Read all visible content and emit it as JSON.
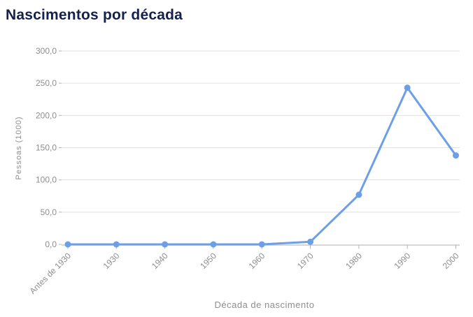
{
  "page": {
    "background": "#ffffff"
  },
  "chart_data": {
    "type": "line",
    "title": "Nascimentos por década",
    "xlabel": "Década de nascimento",
    "ylabel": "Pessoas (1000)",
    "categories": [
      "Antes de 1930",
      "1930",
      "1940",
      "1950",
      "1960",
      "1970",
      "1980",
      "1990",
      "2000"
    ],
    "values": [
      0,
      0,
      0,
      0,
      0,
      4,
      77,
      243,
      138
    ],
    "ylim": [
      0,
      300
    ],
    "ytick_values": [
      0,
      50,
      100,
      150,
      200,
      250,
      300
    ],
    "ytick_labels": [
      "0,0",
      "50,0",
      "100,0",
      "150,0",
      "200,0",
      "250,0",
      "300,0"
    ],
    "grid": true,
    "legend": "none",
    "marker": "circle",
    "colors": {
      "series": "#6d9fe8",
      "title": "#14204e",
      "axis_labels": "#8e8e8e",
      "axis_titles": "#8e8e8e",
      "gridline": "#e1e1e1",
      "axis_line": "#c9c9c9",
      "tick": "#b3b3b3",
      "background": "#ffffff"
    }
  }
}
